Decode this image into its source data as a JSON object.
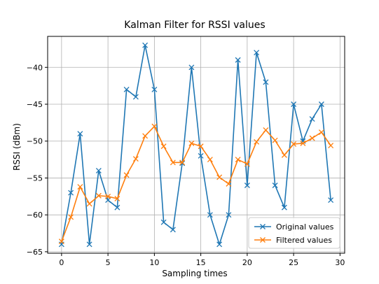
{
  "chart_data": {
    "type": "line",
    "title": "Kalman Filter for RSSI values",
    "xlabel": "Sampling times",
    "ylabel": "RSSI (dBm)",
    "xlim": [
      -1.5,
      30.5
    ],
    "ylim": [
      -65.2,
      -35.8
    ],
    "xticks": [
      0,
      5,
      10,
      15,
      20,
      25,
      30
    ],
    "yticks": [
      -65,
      -60,
      -55,
      -50,
      -45,
      -40
    ],
    "ytick_labels": [
      "−65",
      "−60",
      "−55",
      "−50",
      "−45",
      "−40"
    ],
    "grid": true,
    "legend_position": "lower-right",
    "x": [
      0,
      1,
      2,
      3,
      4,
      5,
      6,
      7,
      8,
      9,
      10,
      11,
      12,
      13,
      14,
      15,
      16,
      17,
      18,
      19,
      20,
      21,
      22,
      23,
      24,
      25,
      26,
      27,
      28,
      29
    ],
    "series": [
      {
        "name": "Original values",
        "color": "#1f77b4",
        "marker": "x",
        "values": [
          -64,
          -57,
          -49,
          -64,
          -54,
          -58,
          -59,
          -43,
          -44,
          -37,
          -43,
          -61,
          -62,
          -53,
          -40,
          -52,
          -60,
          -64,
          -60,
          -39,
          -56,
          -38,
          -42,
          -56,
          -59,
          -45,
          -50,
          -47,
          -45,
          -58
        ]
      },
      {
        "name": "Filtered values",
        "color": "#ff7f0e",
        "marker": "x",
        "values": [
          -63.6,
          -60.3,
          -56.2,
          -58.5,
          -57.4,
          -57.5,
          -57.8,
          -54.6,
          -52.4,
          -49.3,
          -48.0,
          -50.7,
          -52.9,
          -52.9,
          -50.3,
          -50.7,
          -52.5,
          -54.9,
          -55.8,
          -52.5,
          -53.1,
          -50.1,
          -48.5,
          -49.9,
          -51.9,
          -50.4,
          -50.3,
          -49.6,
          -48.8,
          -50.6
        ]
      }
    ]
  }
}
